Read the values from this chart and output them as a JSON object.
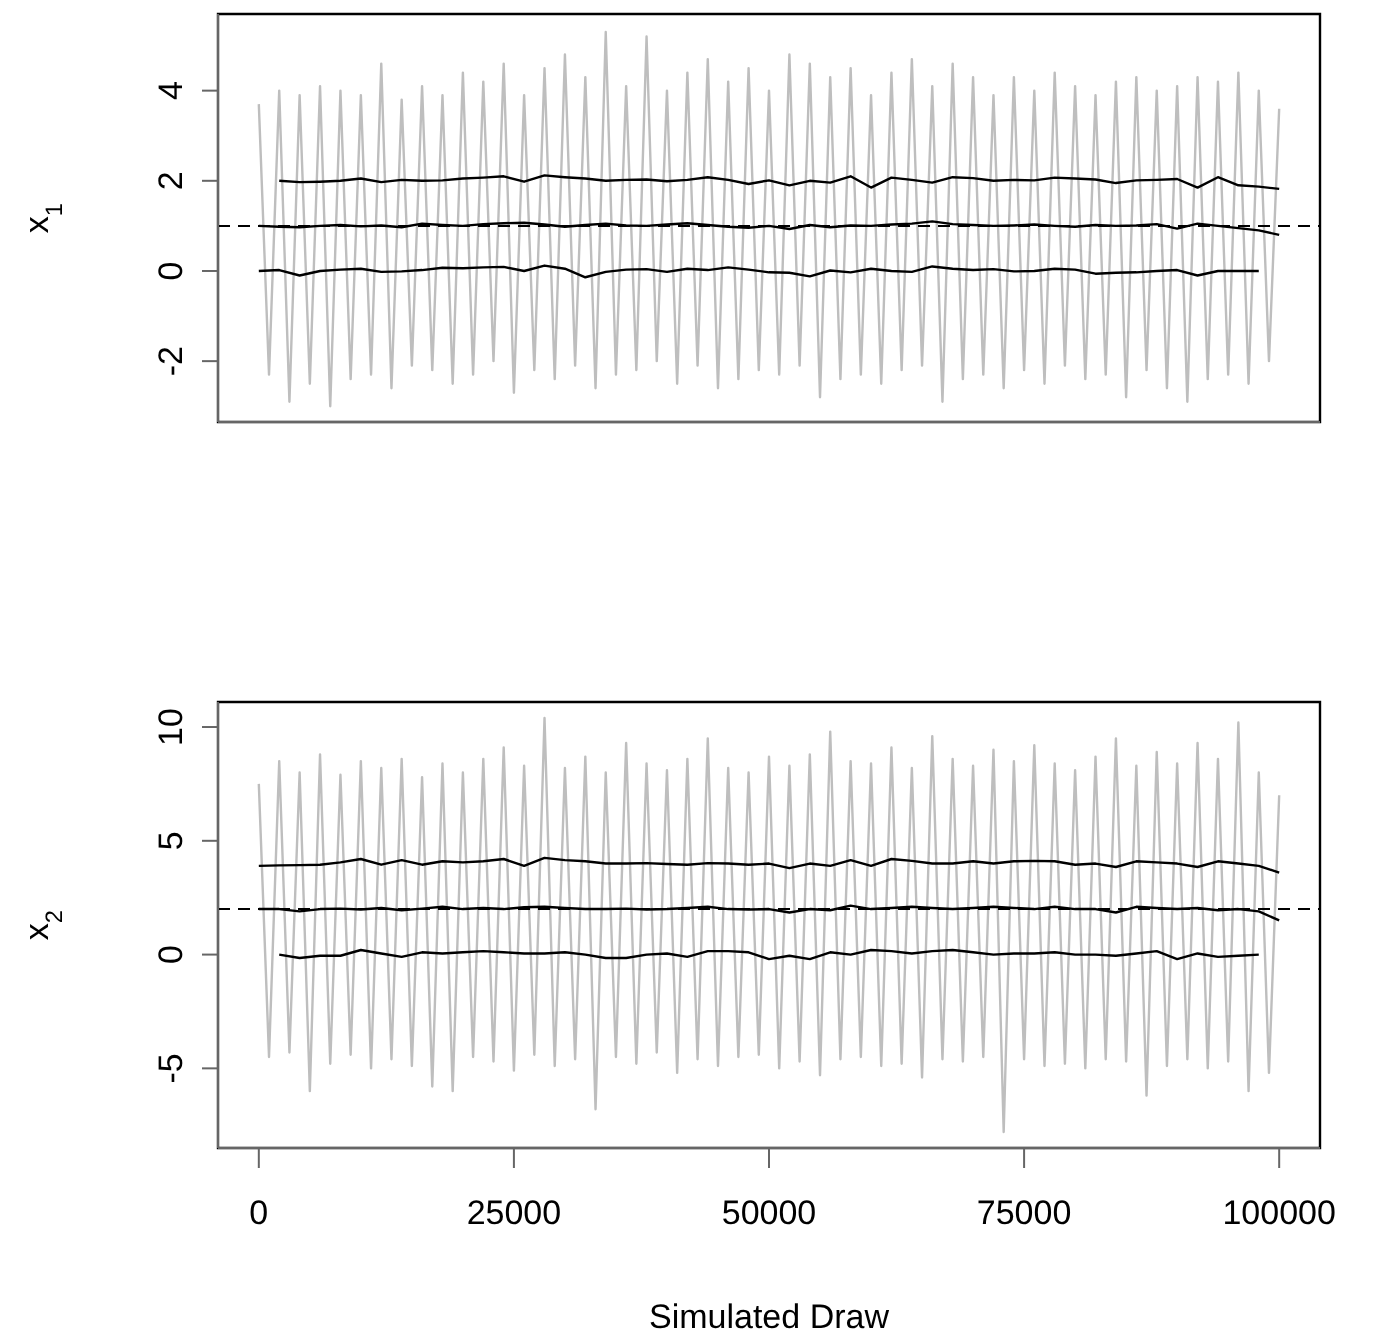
{
  "chart_data": [
    {
      "type": "line",
      "ylabel": "x$_{1}$",
      "xlim": [
        -4000,
        104000
      ],
      "ylim": [
        -3.35,
        5.7
      ],
      "yticks": [
        -2,
        0,
        2,
        4
      ],
      "tick_labels": "y",
      "marker": "none",
      "line_style": "solid",
      "ref_lines": [
        {
          "axis": "y",
          "value": 1,
          "color": "#000000",
          "line_style": "dashed"
        }
      ],
      "series": [
        {
          "color": "#bebebe",
          "x": [
            0,
            1000,
            2000,
            3000,
            4000,
            5000,
            6000,
            7000,
            8000,
            9000,
            10000,
            11000,
            12000,
            13000,
            14000,
            15000,
            16000,
            17000,
            18000,
            19000,
            20000,
            21000,
            22000,
            23000,
            24000,
            25000,
            26000,
            27000,
            28000,
            29000,
            30000,
            31000,
            32000,
            33000,
            34000,
            35000,
            36000,
            37000,
            38000,
            39000,
            40000,
            41000,
            42000,
            43000,
            44000,
            45000,
            46000,
            47000,
            48000,
            49000,
            50000,
            51000,
            52000,
            53000,
            54000,
            55000,
            56000,
            57000,
            58000,
            59000,
            60000,
            61000,
            62000,
            63000,
            64000,
            65000,
            66000,
            67000,
            68000,
            69000,
            70000,
            71000,
            72000,
            73000,
            74000,
            75000,
            76000,
            77000,
            78000,
            79000,
            80000,
            81000,
            82000,
            83000,
            84000,
            85000,
            86000,
            87000,
            88000,
            89000,
            90000,
            91000,
            92000,
            93000,
            94000,
            95000,
            96000,
            97000,
            98000,
            99000,
            100000
          ],
          "values": [
            3.7,
            -2.3,
            4.0,
            -2.9,
            3.9,
            -2.5,
            4.1,
            -3.0,
            4.0,
            -2.4,
            3.9,
            -2.3,
            4.6,
            -2.6,
            3.8,
            -2.1,
            4.1,
            -2.2,
            3.9,
            -2.5,
            4.4,
            -2.3,
            4.2,
            -2.0,
            4.6,
            -2.7,
            3.9,
            -2.2,
            4.5,
            -2.4,
            4.8,
            -2.1,
            4.3,
            -2.6,
            5.3,
            -2.3,
            4.1,
            -2.2,
            5.2,
            -2.0,
            4.0,
            -2.5,
            4.4,
            -2.1,
            4.7,
            -2.6,
            4.2,
            -2.4,
            4.5,
            -2.2,
            4.0,
            -2.3,
            4.8,
            -2.1,
            4.6,
            -2.8,
            4.3,
            -2.4,
            4.5,
            -2.3,
            3.9,
            -2.5,
            4.4,
            -2.2,
            4.7,
            -2.1,
            4.1,
            -2.9,
            4.6,
            -2.4,
            4.3,
            -2.3,
            3.9,
            -2.6,
            4.3,
            -2.2,
            4.0,
            -2.5,
            4.4,
            -2.1,
            4.1,
            -2.4,
            3.9,
            -2.3,
            4.2,
            -2.8,
            4.3,
            -2.2,
            4.0,
            -2.6,
            4.1,
            -2.9,
            4.3,
            -2.4,
            4.2,
            -2.3,
            4.4,
            -2.5,
            4.0,
            -2.0,
            3.6
          ]
        },
        {
          "color": "#000000",
          "x": [
            2000,
            4000,
            6000,
            8000,
            10000,
            12000,
            14000,
            16000,
            18000,
            20000,
            22000,
            24000,
            26000,
            28000,
            30000,
            32000,
            34000,
            36000,
            38000,
            40000,
            42000,
            44000,
            46000,
            48000,
            50000,
            52000,
            54000,
            56000,
            58000,
            60000,
            62000,
            64000,
            66000,
            68000,
            70000,
            72000,
            74000,
            76000,
            78000,
            80000,
            82000,
            84000,
            86000,
            88000,
            90000,
            92000,
            94000,
            96000,
            98000,
            100000
          ],
          "values": [
            2.0,
            1.97,
            1.98,
            2.0,
            2.05,
            1.97,
            2.02,
            2.0,
            2.01,
            2.05,
            2.07,
            2.1,
            1.98,
            2.12,
            2.08,
            2.05,
            2.0,
            2.02,
            2.03,
            1.99,
            2.02,
            2.08,
            2.02,
            1.93,
            2.01,
            1.9,
            2.0,
            1.96,
            2.1,
            1.85,
            2.07,
            2.02,
            1.96,
            2.08,
            2.06,
            2.0,
            2.02,
            2.01,
            2.07,
            2.05,
            2.03,
            1.95,
            2.01,
            2.02,
            2.04,
            1.85,
            2.08,
            1.9,
            1.87,
            1.82
          ]
        },
        {
          "color": "#000000",
          "x": [
            0,
            2000,
            4000,
            6000,
            8000,
            10000,
            12000,
            14000,
            16000,
            18000,
            20000,
            22000,
            24000,
            26000,
            28000,
            30000,
            32000,
            34000,
            36000,
            38000,
            40000,
            42000,
            44000,
            46000,
            48000,
            50000,
            52000,
            54000,
            56000,
            58000,
            60000,
            62000,
            64000,
            66000,
            68000,
            70000,
            72000,
            74000,
            76000,
            78000,
            80000,
            82000,
            84000,
            86000,
            88000,
            90000,
            92000,
            94000,
            96000,
            98000,
            100000
          ],
          "values": [
            1.0,
            0.98,
            0.97,
            1.0,
            1.02,
            0.99,
            1.01,
            0.97,
            1.05,
            1.02,
            1.0,
            1.04,
            1.06,
            1.07,
            1.03,
            0.98,
            1.02,
            1.05,
            1.01,
            1.0,
            1.03,
            1.06,
            1.02,
            0.98,
            0.96,
            1.0,
            0.93,
            1.02,
            0.97,
            1.01,
            1.0,
            1.03,
            1.05,
            1.1,
            1.04,
            1.02,
            1.0,
            1.01,
            1.03,
            1.0,
            0.98,
            1.02,
            1.0,
            1.01,
            1.04,
            0.94,
            1.05,
            1.0,
            0.95,
            0.9,
            0.8
          ]
        },
        {
          "color": "#000000",
          "x": [
            0,
            2000,
            4000,
            6000,
            8000,
            10000,
            12000,
            14000,
            16000,
            18000,
            20000,
            22000,
            24000,
            26000,
            28000,
            30000,
            32000,
            34000,
            36000,
            38000,
            40000,
            42000,
            44000,
            46000,
            48000,
            50000,
            52000,
            54000,
            56000,
            58000,
            60000,
            62000,
            64000,
            66000,
            68000,
            70000,
            72000,
            74000,
            76000,
            78000,
            80000,
            82000,
            84000,
            86000,
            88000,
            90000,
            92000,
            94000,
            96000,
            98000
          ],
          "values": [
            0.0,
            0.02,
            -0.1,
            0.0,
            0.03,
            0.05,
            -0.02,
            -0.01,
            0.02,
            0.07,
            0.06,
            0.08,
            0.09,
            0.0,
            0.12,
            0.05,
            -0.14,
            -0.02,
            0.03,
            0.04,
            -0.02,
            0.05,
            0.02,
            0.08,
            0.03,
            -0.03,
            -0.04,
            -0.12,
            0.01,
            -0.03,
            0.05,
            0.0,
            -0.02,
            0.1,
            0.05,
            0.02,
            0.04,
            -0.01,
            0.0,
            0.05,
            0.03,
            -0.06,
            -0.04,
            -0.03,
            0.0,
            0.02,
            -0.1,
            0.0,
            0.0,
            0.0
          ]
        }
      ]
    },
    {
      "type": "line",
      "ylabel": "x$_{2}$",
      "xlabel": "Simulated Draw",
      "xlim": [
        -4000,
        104000
      ],
      "xticks": [
        0,
        25000,
        50000,
        75000,
        100000
      ],
      "ylim": [
        -8.5,
        11.1
      ],
      "yticks": [
        -5,
        0,
        5,
        10
      ],
      "marker": "none",
      "line_style": "solid",
      "ref_lines": [
        {
          "axis": "y",
          "value": 2,
          "color": "#000000",
          "line_style": "dashed"
        }
      ],
      "series": [
        {
          "color": "#bebebe",
          "x": [
            0,
            1000,
            2000,
            3000,
            4000,
            5000,
            6000,
            7000,
            8000,
            9000,
            10000,
            11000,
            12000,
            13000,
            14000,
            15000,
            16000,
            17000,
            18000,
            19000,
            20000,
            21000,
            22000,
            23000,
            24000,
            25000,
            26000,
            27000,
            28000,
            29000,
            30000,
            31000,
            32000,
            33000,
            34000,
            35000,
            36000,
            37000,
            38000,
            39000,
            40000,
            41000,
            42000,
            43000,
            44000,
            45000,
            46000,
            47000,
            48000,
            49000,
            50000,
            51000,
            52000,
            53000,
            54000,
            55000,
            56000,
            57000,
            58000,
            59000,
            60000,
            61000,
            62000,
            63000,
            64000,
            65000,
            66000,
            67000,
            68000,
            69000,
            70000,
            71000,
            72000,
            73000,
            74000,
            75000,
            76000,
            77000,
            78000,
            79000,
            80000,
            81000,
            82000,
            83000,
            84000,
            85000,
            86000,
            87000,
            88000,
            89000,
            90000,
            91000,
            92000,
            93000,
            94000,
            95000,
            96000,
            97000,
            98000,
            99000,
            100000
          ],
          "values": [
            7.5,
            -4.5,
            8.5,
            -4.3,
            8.0,
            -6.0,
            8.8,
            -4.8,
            7.9,
            -4.4,
            8.5,
            -5.0,
            8.2,
            -4.6,
            8.6,
            -4.9,
            7.8,
            -5.8,
            8.4,
            -6.0,
            8.0,
            -4.5,
            8.6,
            -4.7,
            9.1,
            -5.1,
            8.3,
            -4.4,
            10.4,
            -4.9,
            8.2,
            -4.6,
            8.7,
            -6.8,
            8.0,
            -4.5,
            9.3,
            -4.8,
            8.4,
            -4.3,
            8.1,
            -5.2,
            8.6,
            -4.6,
            9.5,
            -4.9,
            8.2,
            -4.5,
            8.0,
            -4.4,
            8.7,
            -5.0,
            8.3,
            -4.7,
            8.8,
            -5.3,
            9.8,
            -4.6,
            8.5,
            -4.5,
            8.4,
            -4.9,
            9.1,
            -4.8,
            8.2,
            -5.4,
            9.6,
            -4.6,
            8.6,
            -4.7,
            8.3,
            -4.5,
            9.0,
            -7.8,
            8.5,
            -4.6,
            9.2,
            -4.9,
            8.4,
            -4.8,
            8.1,
            -5.0,
            8.7,
            -4.6,
            9.5,
            -4.7,
            8.3,
            -6.2,
            8.9,
            -4.9,
            8.4,
            -4.6,
            9.3,
            -5.0,
            8.6,
            -4.7,
            10.2,
            -6.0,
            8.0,
            -5.2,
            7.0
          ]
        },
        {
          "color": "#000000",
          "x": [
            0,
            2000,
            4000,
            6000,
            8000,
            10000,
            12000,
            14000,
            16000,
            18000,
            20000,
            22000,
            24000,
            26000,
            28000,
            30000,
            32000,
            34000,
            36000,
            38000,
            40000,
            42000,
            44000,
            46000,
            48000,
            50000,
            52000,
            54000,
            56000,
            58000,
            60000,
            62000,
            64000,
            66000,
            68000,
            70000,
            72000,
            74000,
            76000,
            78000,
            80000,
            82000,
            84000,
            86000,
            88000,
            90000,
            92000,
            94000,
            96000,
            98000,
            100000
          ],
          "values": [
            3.9,
            3.92,
            3.93,
            3.95,
            4.05,
            4.2,
            3.95,
            4.15,
            3.95,
            4.1,
            4.05,
            4.1,
            4.2,
            3.9,
            4.25,
            4.15,
            4.1,
            4.0,
            4.0,
            4.02,
            3.98,
            3.95,
            4.02,
            4.0,
            3.95,
            4.0,
            3.8,
            4.0,
            3.9,
            4.15,
            3.9,
            4.2,
            4.12,
            4.0,
            4.0,
            4.1,
            4.0,
            4.1,
            4.12,
            4.1,
            3.95,
            4.0,
            3.85,
            4.1,
            4.05,
            4.0,
            3.85,
            4.1,
            4.0,
            3.9,
            3.6
          ]
        },
        {
          "color": "#000000",
          "x": [
            0,
            2000,
            4000,
            6000,
            8000,
            10000,
            12000,
            14000,
            16000,
            18000,
            20000,
            22000,
            24000,
            26000,
            28000,
            30000,
            32000,
            34000,
            36000,
            38000,
            40000,
            42000,
            44000,
            46000,
            48000,
            50000,
            52000,
            54000,
            56000,
            58000,
            60000,
            62000,
            64000,
            66000,
            68000,
            70000,
            72000,
            74000,
            76000,
            78000,
            80000,
            82000,
            84000,
            86000,
            88000,
            90000,
            92000,
            94000,
            96000,
            98000,
            100000
          ],
          "values": [
            2.0,
            2.0,
            1.9,
            2.0,
            2.02,
            1.98,
            2.05,
            1.95,
            2.02,
            2.1,
            2.0,
            2.05,
            2.0,
            2.08,
            2.1,
            2.05,
            2.0,
            2.0,
            2.02,
            1.98,
            2.0,
            2.05,
            2.1,
            2.0,
            1.98,
            2.0,
            1.85,
            2.0,
            1.95,
            2.15,
            2.0,
            2.05,
            2.1,
            2.05,
            2.0,
            2.05,
            2.1,
            2.05,
            2.0,
            2.1,
            2.0,
            2.0,
            1.85,
            2.1,
            2.05,
            2.0,
            2.05,
            1.95,
            2.0,
            1.9,
            1.5
          ]
        },
        {
          "color": "#000000",
          "x": [
            2000,
            4000,
            6000,
            8000,
            10000,
            12000,
            14000,
            16000,
            18000,
            20000,
            22000,
            24000,
            26000,
            28000,
            30000,
            32000,
            34000,
            36000,
            38000,
            40000,
            42000,
            44000,
            46000,
            48000,
            50000,
            52000,
            54000,
            56000,
            58000,
            60000,
            62000,
            64000,
            66000,
            68000,
            70000,
            72000,
            74000,
            76000,
            78000,
            80000,
            82000,
            84000,
            86000,
            88000,
            90000,
            92000,
            94000,
            96000,
            98000
          ],
          "values": [
            0.0,
            -0.15,
            -0.05,
            -0.05,
            0.2,
            0.05,
            -0.1,
            0.1,
            0.05,
            0.1,
            0.15,
            0.1,
            0.05,
            0.05,
            0.1,
            0.0,
            -0.15,
            -0.15,
            0.0,
            0.05,
            -0.1,
            0.15,
            0.15,
            0.1,
            -0.2,
            -0.05,
            -0.2,
            0.1,
            0.0,
            0.2,
            0.15,
            0.05,
            0.15,
            0.2,
            0.1,
            0.0,
            0.05,
            0.05,
            0.1,
            0.0,
            0.0,
            -0.05,
            0.05,
            0.15,
            -0.2,
            0.05,
            -0.1,
            -0.05,
            0.0
          ]
        }
      ]
    }
  ]
}
